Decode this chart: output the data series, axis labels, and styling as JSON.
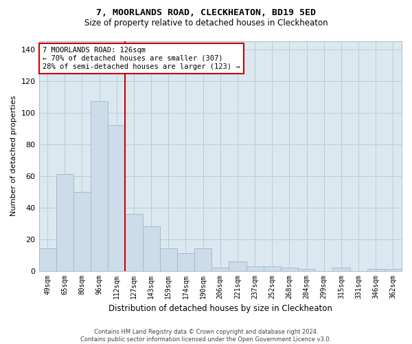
{
  "title": "7, MOORLANDS ROAD, CLECKHEATON, BD19 5ED",
  "subtitle": "Size of property relative to detached houses in Cleckheaton",
  "xlabel": "Distribution of detached houses by size in Cleckheaton",
  "ylabel": "Number of detached properties",
  "categories": [
    "49sqm",
    "65sqm",
    "80sqm",
    "96sqm",
    "112sqm",
    "127sqm",
    "143sqm",
    "159sqm",
    "174sqm",
    "190sqm",
    "206sqm",
    "221sqm",
    "237sqm",
    "252sqm",
    "268sqm",
    "284sqm",
    "299sqm",
    "315sqm",
    "331sqm",
    "346sqm",
    "362sqm"
  ],
  "values": [
    14,
    61,
    50,
    107,
    92,
    36,
    28,
    14,
    11,
    14,
    2,
    6,
    3,
    3,
    2,
    1,
    0,
    2,
    0,
    1,
    1
  ],
  "bar_color": "#ccdce8",
  "bar_edge_color": "#a0bcd0",
  "vline_x_index": 5,
  "vline_color": "#cc0000",
  "annotation_text": "7 MOORLANDS ROAD: 126sqm\n← 70% of detached houses are smaller (307)\n28% of semi-detached houses are larger (123) →",
  "annotation_box_color": "#ffffff",
  "annotation_box_edge": "#cc0000",
  "ylim": [
    0,
    145
  ],
  "yticks": [
    0,
    20,
    40,
    60,
    80,
    100,
    120,
    140
  ],
  "plot_bg_color": "#dce8f0",
  "background_color": "#ffffff",
  "grid_color": "#b8ccd8",
  "footer": "Contains HM Land Registry data © Crown copyright and database right 2024.\nContains public sector information licensed under the Open Government Licence v3.0."
}
